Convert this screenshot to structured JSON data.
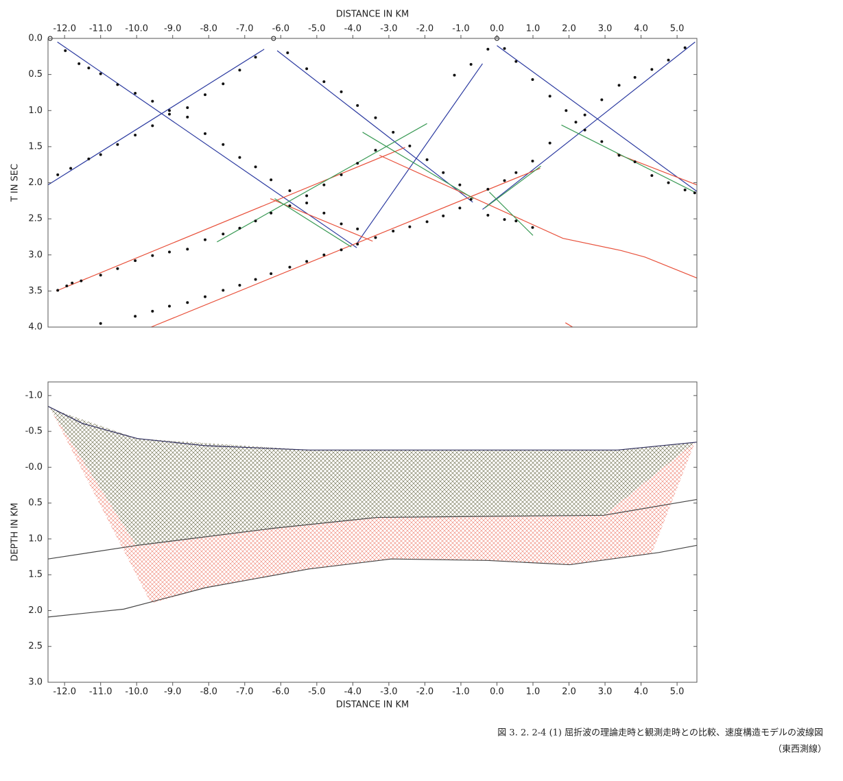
{
  "chart_data": [
    {
      "type": "line",
      "title": "DISTANCE IN KM",
      "ylabel": "T IN SEC",
      "xaxis_position": "top",
      "xlim": [
        -12.46,
        5.55
      ],
      "ylim": [
        4,
        0
      ],
      "xticks": [
        {
          "value": -12,
          "label": "-12.0"
        },
        {
          "value": -11,
          "label": "-11.0"
        },
        {
          "value": -10,
          "label": "-10.0"
        },
        {
          "value": -9,
          "label": "-9.0"
        },
        {
          "value": -8,
          "label": "-8.0"
        },
        {
          "value": -7,
          "label": "-7.0"
        },
        {
          "value": -6,
          "label": "-6.0"
        },
        {
          "value": -5,
          "label": "-5.0"
        },
        {
          "value": -4,
          "label": "-4.0"
        },
        {
          "value": -3,
          "label": "-3.0"
        },
        {
          "value": -2,
          "label": "-2.0"
        },
        {
          "value": -1,
          "label": "-1.0"
        },
        {
          "value": 0,
          "label": "0.0"
        },
        {
          "value": 1,
          "label": "1.0"
        },
        {
          "value": 2,
          "label": "2.0"
        },
        {
          "value": 3,
          "label": "3.0"
        },
        {
          "value": 4,
          "label": "4.0"
        },
        {
          "value": 5,
          "label": "5.0"
        }
      ],
      "yticks": [
        {
          "value": 0,
          "label": "0.0"
        },
        0.5,
        {
          "value": 1,
          "label": "1.0"
        },
        1.5,
        {
          "value": 2,
          "label": "2.0"
        },
        2.5,
        {
          "value": 3,
          "label": "3.0"
        },
        3.5,
        {
          "value": 4,
          "label": "4.0"
        }
      ],
      "series": [
        {
          "color": "#2b3aa0",
          "x": [
            -12.2,
            -3.89
          ],
          "values": [
            0.05,
            2.9
          ]
        },
        {
          "color": "#2b3aa0",
          "x": [
            -12.46,
            -6.46
          ],
          "values": [
            2.03,
            0.15
          ]
        },
        {
          "color": "#2b3aa0",
          "x": [
            -6.1,
            -0.67
          ],
          "values": [
            0.17,
            2.27
          ]
        },
        {
          "color": "#2b3aa0",
          "x": [
            -3.9,
            -0.4
          ],
          "values": [
            2.85,
            0.35
          ]
        },
        {
          "color": "#2b3aa0",
          "x": [
            0.0,
            5.55
          ],
          "values": [
            0.1,
            2.12
          ]
        },
        {
          "color": "#2b3aa0",
          "x": [
            -0.4,
            5.5
          ],
          "values": [
            2.37,
            0.05
          ]
        },
        {
          "color": "#e8503a",
          "x": [
            -12.23,
            -2.55
          ],
          "values": [
            3.5,
            1.51
          ]
        },
        {
          "color": "#e8503a",
          "x": [
            -9.6,
            1.2
          ],
          "values": [
            4.0,
            1.8
          ]
        },
        {
          "color": "#e8503a",
          "x": [
            -3.26,
            1.83,
            3.45,
            4.11,
            5.55
          ],
          "values": [
            1.62,
            2.77,
            2.94,
            3.03,
            3.32
          ]
        },
        {
          "color": "#e8503a",
          "x": [
            -6.29,
            -3.45
          ],
          "values": [
            2.22,
            2.81
          ]
        },
        {
          "color": "#e8503a",
          "x": [
            3.33,
            5.55
          ],
          "values": [
            1.6,
            2.03
          ]
        },
        {
          "color": "#e8503a",
          "x": [
            1.9,
            2.1
          ],
          "values": [
            3.94,
            4.0
          ]
        },
        {
          "color": "#3a9a55",
          "x": [
            -7.77,
            -1.94
          ],
          "values": [
            2.82,
            1.18
          ]
        },
        {
          "color": "#3a9a55",
          "x": [
            -3.73,
            -0.65
          ],
          "values": [
            1.3,
            2.22
          ]
        },
        {
          "color": "#3a9a55",
          "x": [
            -6.17,
            -4.04
          ],
          "values": [
            2.22,
            2.89
          ]
        },
        {
          "color": "#3a9a55",
          "x": [
            -0.34,
            1.22
          ],
          "values": [
            2.35,
            1.77
          ]
        },
        {
          "color": "#3a9a55",
          "x": [
            -0.21,
            1.0
          ],
          "values": [
            2.13,
            2.73
          ]
        },
        {
          "color": "#3a9a55",
          "x": [
            1.79,
            5.49
          ],
          "values": [
            1.2,
            2.13
          ]
        }
      ],
      "points": {
        "color": "#111",
        "x": [
          -11.98,
          -11.6,
          -11.33,
          -11.0,
          -10.53,
          -10.04,
          -9.56,
          -9.09,
          -8.59,
          -8.1,
          -7.6,
          -7.14,
          -6.7,
          -6.27,
          -5.75,
          -5.28,
          -4.8,
          -4.32,
          -3.87,
          -12.19,
          -11.83,
          -11.33,
          -11.0,
          -10.53,
          -10.04,
          -9.56,
          -9.09,
          -8.59,
          -8.1,
          -7.6,
          -7.14,
          -6.7,
          -5.81,
          -5.28,
          -4.8,
          -4.32,
          -3.87,
          -3.37,
          -2.88,
          -2.42,
          -1.94,
          -1.49,
          -1.03,
          -0.72,
          -12.19,
          -11.94,
          -11.79,
          -11.54,
          -11.0,
          -10.53,
          -10.04,
          -9.56,
          -9.09,
          -8.59,
          -8.1,
          -7.6,
          -7.14,
          -6.7,
          -6.27,
          -5.75,
          -5.28,
          -4.8,
          -4.32,
          -3.87,
          -3.37,
          -11.0,
          -10.04,
          -9.56,
          -9.09,
          -8.59,
          -8.1,
          -7.6,
          -7.14,
          -6.7,
          -6.27,
          -5.75,
          -5.28,
          -4.8,
          -4.32,
          -3.87,
          -3.37,
          -2.88,
          -2.42,
          -1.94,
          -1.49,
          -1.03,
          -1.18,
          -0.72,
          -0.25,
          0.21,
          0.53,
          0.99,
          1.47,
          1.92,
          2.19,
          2.44,
          2.91,
          3.39,
          3.83,
          4.3,
          4.76,
          5.22,
          5.49,
          -0.25,
          0.21,
          0.53,
          0.99,
          1.47,
          2.44,
          2.91,
          3.39,
          3.83,
          4.3,
          4.76,
          5.22,
          -0.25,
          0.21,
          0.53,
          0.99
        ],
        "values": [
          0.17,
          0.35,
          0.41,
          0.49,
          0.64,
          0.76,
          0.87,
          1.0,
          1.09,
          1.32,
          1.47,
          1.65,
          1.78,
          1.96,
          2.11,
          2.28,
          2.42,
          2.57,
          2.64,
          1.89,
          1.8,
          1.67,
          1.61,
          1.47,
          1.34,
          1.21,
          1.05,
          0.96,
          0.78,
          0.63,
          0.44,
          0.26,
          0.2,
          0.42,
          0.6,
          0.74,
          0.93,
          1.1,
          1.3,
          1.49,
          1.68,
          1.86,
          2.03,
          2.23,
          3.49,
          3.43,
          3.39,
          3.36,
          3.28,
          3.19,
          3.08,
          3.01,
          2.96,
          2.92,
          2.79,
          2.71,
          2.63,
          2.53,
          2.42,
          2.32,
          2.18,
          2.03,
          1.89,
          1.73,
          1.55,
          3.95,
          3.85,
          3.78,
          3.71,
          3.66,
          3.58,
          3.49,
          3.42,
          3.34,
          3.26,
          3.17,
          3.09,
          3.0,
          2.93,
          2.85,
          2.76,
          2.67,
          2.61,
          2.54,
          2.46,
          2.35,
          0.51,
          0.36,
          0.15,
          0.14,
          0.32,
          0.57,
          0.8,
          1.0,
          1.16,
          1.27,
          1.43,
          1.62,
          1.71,
          1.9,
          2.0,
          2.1,
          2.14,
          2.09,
          1.97,
          1.86,
          1.7,
          1.45,
          1.06,
          0.85,
          0.65,
          0.54,
          0.43,
          0.3,
          0.13,
          2.45,
          2.51,
          2.53,
          2.62
        ]
      },
      "sources": {
        "color": "#111",
        "x": [
          -12.4,
          -6.2,
          0.0
        ],
        "values": [
          0,
          0,
          0
        ]
      }
    },
    {
      "type": "line",
      "title": "DISTANCE IN KM",
      "ylabel": "DEPTH IN KM",
      "xaxis_position": "bottom",
      "xlim": [
        -12.46,
        5.55
      ],
      "ylim": [
        3.0,
        -1.19
      ],
      "xticks": [
        {
          "value": -12,
          "label": "-12.0"
        },
        {
          "value": -11,
          "label": "-11.0"
        },
        {
          "value": -10,
          "label": "-10.0"
        },
        {
          "value": -9,
          "label": "-9.0"
        },
        {
          "value": -8,
          "label": "-8.0"
        },
        {
          "value": -7,
          "label": "-7.0"
        },
        {
          "value": -6,
          "label": "-6.0"
        },
        {
          "value": -5,
          "label": "-5.0"
        },
        {
          "value": -4,
          "label": "-4.0"
        },
        {
          "value": -3,
          "label": "-3.0"
        },
        {
          "value": -2,
          "label": "-2.0"
        },
        {
          "value": -1,
          "label": "-1.0"
        },
        {
          "value": 0,
          "label": "0.0"
        },
        {
          "value": 1,
          "label": "1.0"
        },
        {
          "value": 2,
          "label": "2.0"
        },
        {
          "value": 3,
          "label": "3.0"
        },
        {
          "value": 4,
          "label": "4.0"
        },
        {
          "value": 5,
          "label": "5.0"
        }
      ],
      "yticks": [
        {
          "value": -1,
          "label": "-1.0"
        },
        -0.5,
        {
          "value": 0,
          "label": "-0.0"
        },
        0.5,
        {
          "value": 1,
          "label": "1.0"
        },
        1.5,
        {
          "value": 2,
          "label": "2.0"
        },
        2.5,
        {
          "value": 3,
          "label": "3.0"
        }
      ],
      "regions": [
        {
          "color": "#e8503a",
          "x": [
            -12.4,
            -9.6,
            -8.08,
            -5.22,
            -2.93,
            -0.27,
            2.02,
            4.3,
            5.5,
            3.35,
            -5.22,
            -9.98
          ],
          "values": [
            -0.82,
            1.9,
            1.68,
            1.42,
            1.28,
            1.3,
            1.36,
            1.2,
            -0.35,
            -0.24,
            -0.24,
            -0.4
          ]
        },
        {
          "color": "#3a7a55",
          "x": [
            -12.4,
            -10.0,
            -6.17,
            -3.31,
            2.97,
            5.5,
            3.35,
            -5.22,
            -9.98
          ],
          "values": [
            -0.82,
            1.1,
            0.85,
            0.7,
            0.67,
            -0.35,
            -0.24,
            -0.24,
            -0.4
          ]
        }
      ],
      "series": [
        {
          "color": "#2a2a5a",
          "x": [
            -12.46,
            -11.5,
            -9.98,
            -8.08,
            -5.22,
            -0.46,
            3.35,
            5.55
          ],
          "values": [
            -0.85,
            -0.61,
            -0.4,
            -0.3,
            -0.24,
            -0.24,
            -0.24,
            -0.35
          ]
        },
        {
          "color": "#444",
          "x": [
            -12.46,
            -9.98,
            -6.17,
            -3.31,
            2.97,
            5.55
          ],
          "values": [
            1.28,
            1.09,
            0.85,
            0.7,
            0.67,
            0.45
          ]
        },
        {
          "color": "#444",
          "x": [
            -12.46,
            -10.36,
            -8.08,
            -5.22,
            -2.93,
            -0.27,
            2.02,
            4.49,
            5.55
          ],
          "values": [
            2.09,
            1.98,
            1.68,
            1.42,
            1.28,
            1.3,
            1.36,
            1.19,
            1.09
          ]
        }
      ]
    }
  ],
  "caption": [
    "図 3. 2. 2-4 (1)  屈折波の理論走時と観測走時との比較、速度構造モデルの波線図",
    "（東西測線）"
  ]
}
